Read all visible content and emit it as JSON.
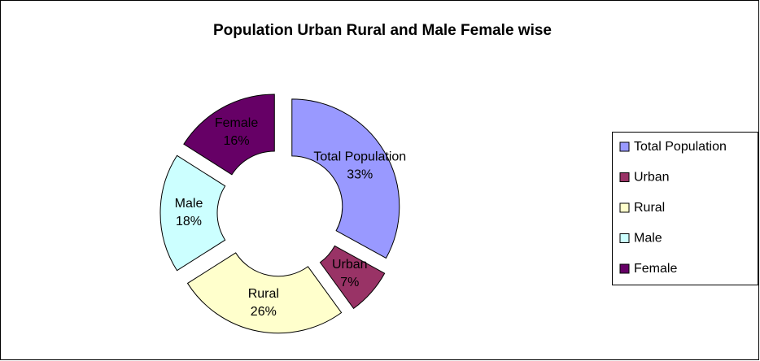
{
  "chart_data": {
    "type": "donut",
    "title": "Population Urban Rural and Male Female wise",
    "categories": [
      "Total Population",
      "Urban",
      "Rural",
      "Male",
      "Female"
    ],
    "values": [
      33,
      7,
      26,
      18,
      16
    ],
    "value_labels": [
      "33%",
      "7%",
      "26%",
      "18%",
      "16%"
    ],
    "colors": [
      "#9999ff",
      "#993366",
      "#ffffcc",
      "#ccffff",
      "#660066"
    ],
    "legend": "right"
  }
}
